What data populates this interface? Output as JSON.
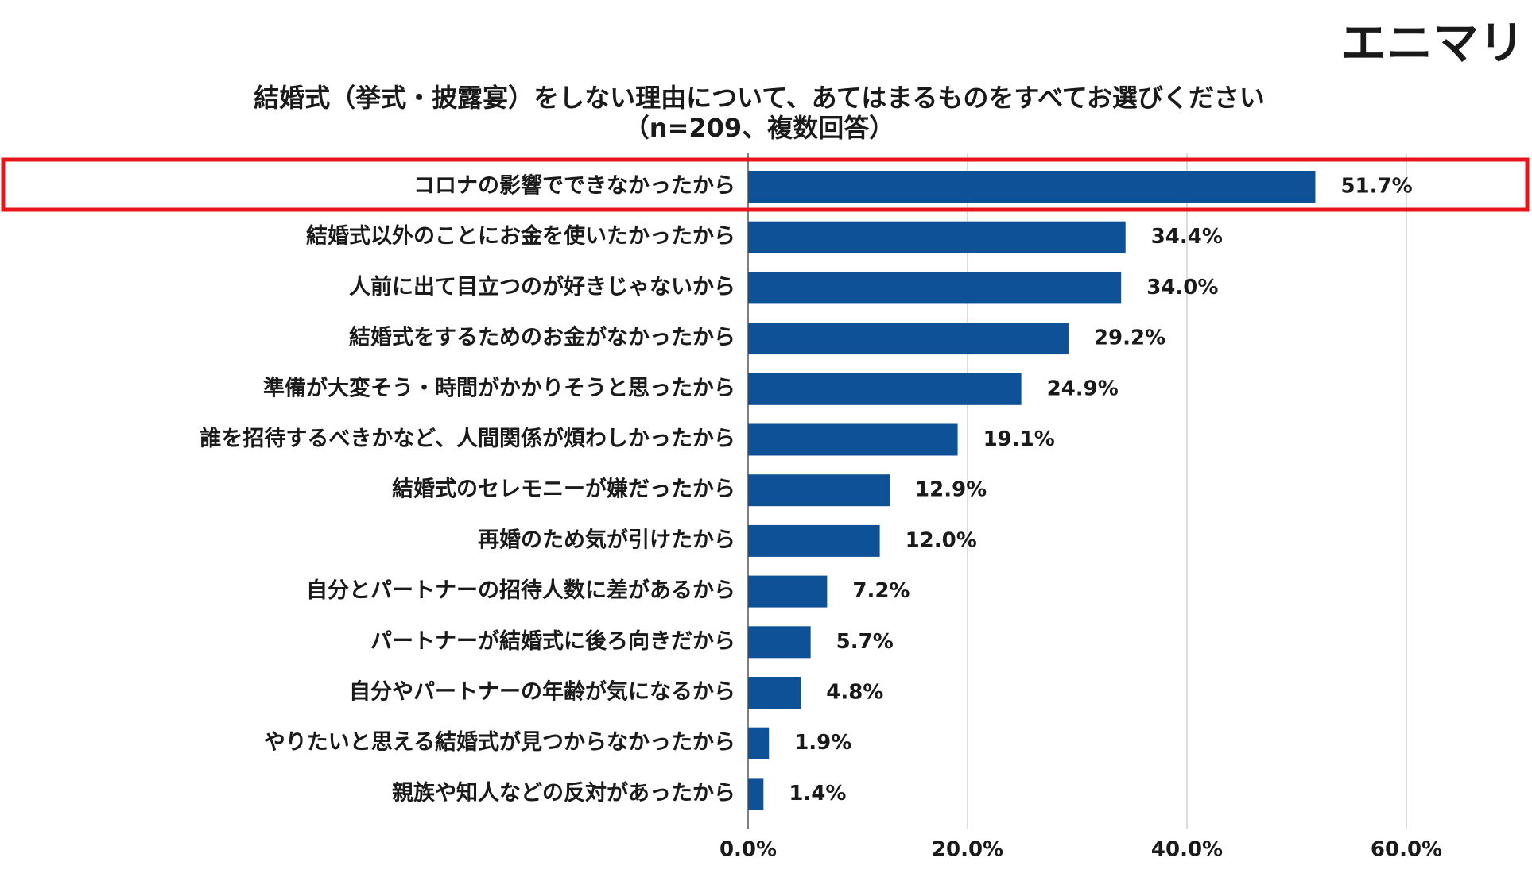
{
  "brand": "エニマリ",
  "chart_data": {
    "type": "bar",
    "orientation": "horizontal",
    "title": "結婚式（挙式・披露宴）をしない理由について、あてはまるものをすべてお選びください",
    "subtitle": "（n=209、複数回答）",
    "categories": [
      "コロナの影響でできなかったから",
      "結婚式以外のことにお金を使いたかったから",
      "人前に出て目立つのが好きじゃないから",
      "結婚式をするためのお金がなかったから",
      "準備が大変そう・時間がかかりそうと思ったから",
      "誰を招待するべきかなど、人間関係が煩わしかったから",
      "結婚式のセレモニーが嫌だったから",
      "再婚のため気が引けたから",
      "自分とパートナーの招待人数に差があるから",
      "パートナーが結婚式に後ろ向きだから",
      "自分やパートナーの年齢が気になるから",
      "やりたいと思える結婚式が見つからなかったから",
      "親族や知人などの反対があったから"
    ],
    "values": [
      51.7,
      34.4,
      34.0,
      29.2,
      24.9,
      19.1,
      12.9,
      12.0,
      7.2,
      5.7,
      4.8,
      1.9,
      1.4
    ],
    "value_labels": [
      "51.7%",
      "34.4%",
      "34.0%",
      "29.2%",
      "24.9%",
      "19.1%",
      "12.9%",
      "12.0%",
      "7.2%",
      "5.7%",
      "4.8%",
      "1.9%",
      "1.4%"
    ],
    "color": "#0f5196",
    "xlim": [
      0,
      70
    ],
    "xticks": [
      {
        "value": 0,
        "label": "0.0%"
      },
      {
        "value": 20,
        "label": "20.0%"
      },
      {
        "value": 40,
        "label": "40.0%"
      },
      {
        "value": 60,
        "label": "60.0%"
      }
    ],
    "grid": true
  }
}
